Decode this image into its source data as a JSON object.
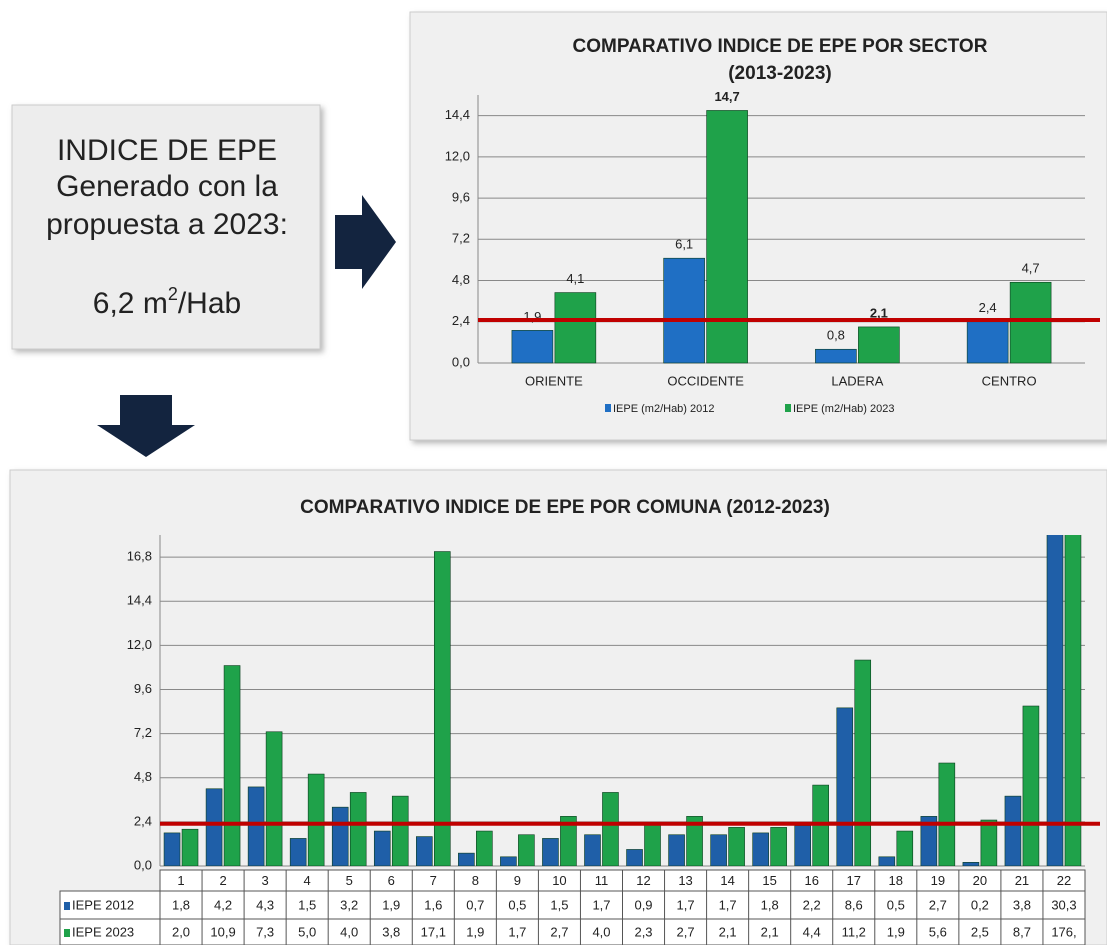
{
  "info_box": {
    "lines": [
      "INDICE DE EPE",
      "Generado con la",
      "propuesta a 2023:"
    ],
    "value": "6,2 m",
    "superscript": "2",
    "unit": "/Hab"
  },
  "chart_data": [
    {
      "type": "bar",
      "title": "COMPARATIVO INDICE DE EPE POR SECTOR",
      "subtitle": "(2013-2023)",
      "categories": [
        "ORIENTE",
        "OCCIDENTE",
        "LADERA",
        "CENTRO"
      ],
      "series": [
        {
          "name": "IEPE (m2/Hab) 2012",
          "color": "#1f6fc4",
          "values": [
            1.9,
            6.1,
            0.8,
            2.4
          ],
          "value_labels": [
            "1,9",
            "6,1",
            "0,8",
            "2,4"
          ],
          "value_label_colors": [
            "#333333",
            "#333333",
            "#333333",
            "#333333"
          ]
        },
        {
          "name": "IEPE (m2/Hab) 2023",
          "color": "#1fa24a",
          "values": [
            4.1,
            14.7,
            2.1,
            4.7
          ],
          "value_labels": [
            "4,1",
            "14,7",
            "2,1",
            "4,7"
          ],
          "value_label_colors": [
            "#333333",
            "#ff2a2a",
            "#2f7fd8",
            "#333333"
          ]
        }
      ],
      "ylim": [
        0,
        15.6
      ],
      "yticks": [
        {
          "value": 0,
          "label": "0,0"
        },
        {
          "value": 2.4,
          "label": "2,4"
        },
        {
          "value": 4.8,
          "label": "4,8"
        },
        {
          "value": 7.2,
          "label": "7,2"
        },
        {
          "value": 9.6,
          "label": "9,6"
        },
        {
          "value": 12,
          "label": "12,0"
        },
        {
          "value": 14.4,
          "label": "14,4"
        }
      ],
      "grid": true,
      "reference_line": 2.5,
      "reference_color": "#c00000",
      "legend": "bottom"
    },
    {
      "type": "bar",
      "title": "COMPARATIVO INDICE DE EPE POR COMUNA (2012-2023)",
      "categories": [
        "1",
        "2",
        "3",
        "4",
        "5",
        "6",
        "7",
        "8",
        "9",
        "10",
        "11",
        "12",
        "13",
        "14",
        "15",
        "16",
        "17",
        "18",
        "19",
        "20",
        "21",
        "22"
      ],
      "series": [
        {
          "name": "IEPE 2012",
          "color": "#1f5fa8",
          "values": [
            1.8,
            4.2,
            4.3,
            1.5,
            3.2,
            1.9,
            1.6,
            0.7,
            0.5,
            1.5,
            1.7,
            0.9,
            1.7,
            1.7,
            1.8,
            2.2,
            8.6,
            0.5,
            2.7,
            0.2,
            3.8,
            30.3
          ],
          "value_labels": [
            "1,8",
            "4,2",
            "4,3",
            "1,5",
            "3,2",
            "1,9",
            "1,6",
            "0,7",
            "0,5",
            "1,5",
            "1,7",
            "0,9",
            "1,7",
            "1,7",
            "1,8",
            "2,2",
            "8,6",
            "0,5",
            "2,7",
            "0,2",
            "3,8",
            "30,3"
          ]
        },
        {
          "name": "IEPE 2023",
          "color": "#1fa24a",
          "values": [
            2.0,
            10.9,
            7.3,
            5.0,
            4.0,
            3.8,
            17.1,
            1.9,
            1.7,
            2.7,
            4.0,
            2.3,
            2.7,
            2.1,
            2.1,
            4.4,
            11.2,
            1.9,
            5.6,
            2.5,
            8.7,
            176
          ],
          "value_labels": [
            "2,0",
            "10,9",
            "7,3",
            "5,0",
            "4,0",
            "3,8",
            "17,1",
            "1,9",
            "1,7",
            "2,7",
            "4,0",
            "2,3",
            "2,7",
            "2,1",
            "2,1",
            "4,4",
            "11,2",
            "1,9",
            "5,6",
            "2,5",
            "8,7",
            "176,"
          ]
        }
      ],
      "ylim": [
        0,
        18
      ],
      "yticks": [
        {
          "value": 0,
          "label": "0,0"
        },
        {
          "value": 2.4,
          "label": "2,4"
        },
        {
          "value": 4.8,
          "label": "4,8"
        },
        {
          "value": 7.2,
          "label": "7,2"
        },
        {
          "value": 9.6,
          "label": "9,6"
        },
        {
          "value": 12,
          "label": "12,0"
        },
        {
          "value": 14.4,
          "label": "14,4"
        },
        {
          "value": 16.8,
          "label": "16,8"
        }
      ],
      "grid": true,
      "reference_line": 2.3,
      "reference_color": "#c00000",
      "data_table": true
    }
  ]
}
